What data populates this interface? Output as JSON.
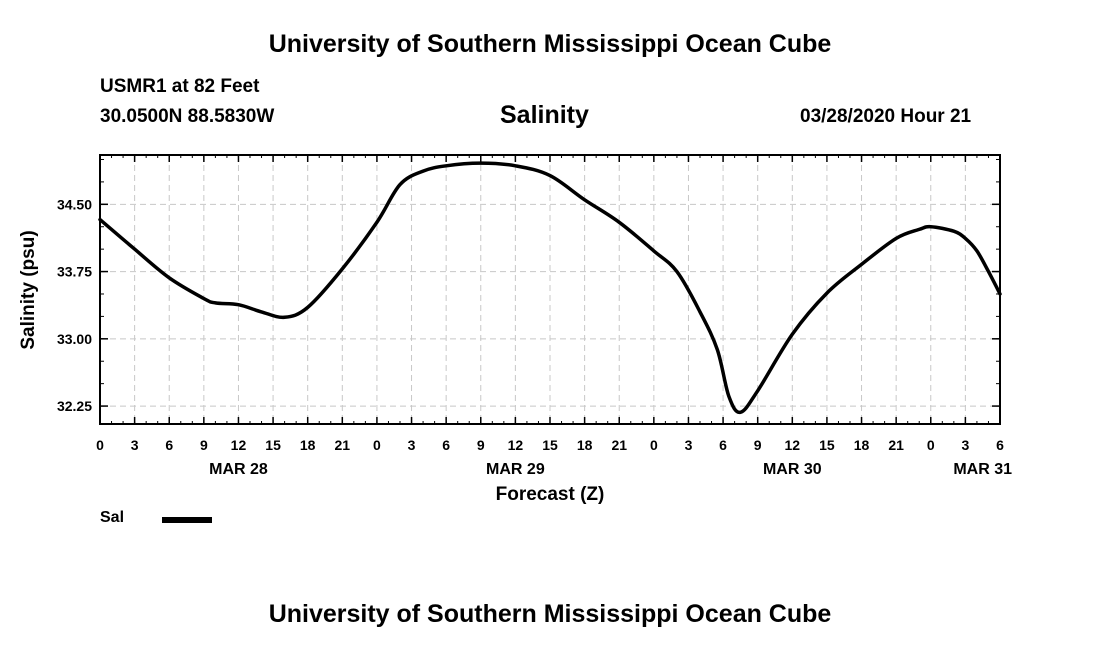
{
  "header": {
    "title": "University of Southern Mississippi Ocean Cube",
    "station": "USMR1 at 82 Feet",
    "location": "30.0500N 88.5830W",
    "timestamp": "03/28/2020 Hour 21"
  },
  "footer": {
    "title": "University of Southern Mississippi Ocean Cube"
  },
  "legend": {
    "label": "Sal"
  },
  "chart_data": {
    "type": "line",
    "title": "Salinity",
    "xlabel": "Forecast (Z)",
    "ylabel": "Salinity (psu)",
    "x_unit": "hours from MAR 28 00Z",
    "xlim": [
      0,
      78
    ],
    "ylim": [
      32.05,
      35.05
    ],
    "grid": true,
    "yticks": [
      32.25,
      33.0,
      33.75,
      34.5
    ],
    "ytick_labels": [
      "32.25",
      "33.00",
      "33.75",
      "34.50"
    ],
    "xticks": [
      0,
      3,
      6,
      9,
      12,
      15,
      18,
      21,
      24,
      27,
      30,
      33,
      36,
      39,
      42,
      45,
      48,
      51,
      54,
      57,
      60,
      63,
      66,
      69,
      72,
      75,
      78
    ],
    "xtick_labels": [
      "0",
      "3",
      "6",
      "9",
      "12",
      "15",
      "18",
      "21",
      "0",
      "3",
      "6",
      "9",
      "12",
      "15",
      "18",
      "21",
      "0",
      "3",
      "6",
      "9",
      "12",
      "15",
      "18",
      "21",
      "0",
      "3",
      "6"
    ],
    "date_labels": [
      {
        "x": 12,
        "label": "MAR 28"
      },
      {
        "x": 36,
        "label": "MAR 29"
      },
      {
        "x": 60,
        "label": "MAR 30"
      },
      {
        "x": 76.5,
        "label": "MAR 31"
      }
    ],
    "series": [
      {
        "name": "Sal",
        "color": "#000000",
        "x": [
          0,
          3,
          6,
          9,
          10,
          12,
          14,
          16,
          18,
          21,
          24,
          26,
          28,
          30,
          33,
          36,
          39,
          42,
          45,
          48,
          50,
          52,
          53.5,
          54.5,
          55.5,
          57,
          60,
          63,
          66,
          69,
          71,
          72,
          74,
          75,
          76,
          77,
          78
        ],
        "values": [
          34.33,
          34.0,
          33.68,
          33.45,
          33.4,
          33.38,
          33.3,
          33.24,
          33.35,
          33.78,
          34.3,
          34.72,
          34.87,
          34.93,
          34.96,
          34.93,
          34.82,
          34.55,
          34.3,
          33.98,
          33.75,
          33.3,
          32.88,
          32.36,
          32.18,
          32.42,
          33.05,
          33.51,
          33.83,
          34.12,
          34.22,
          34.25,
          34.2,
          34.12,
          33.98,
          33.75,
          33.5
        ]
      }
    ]
  }
}
